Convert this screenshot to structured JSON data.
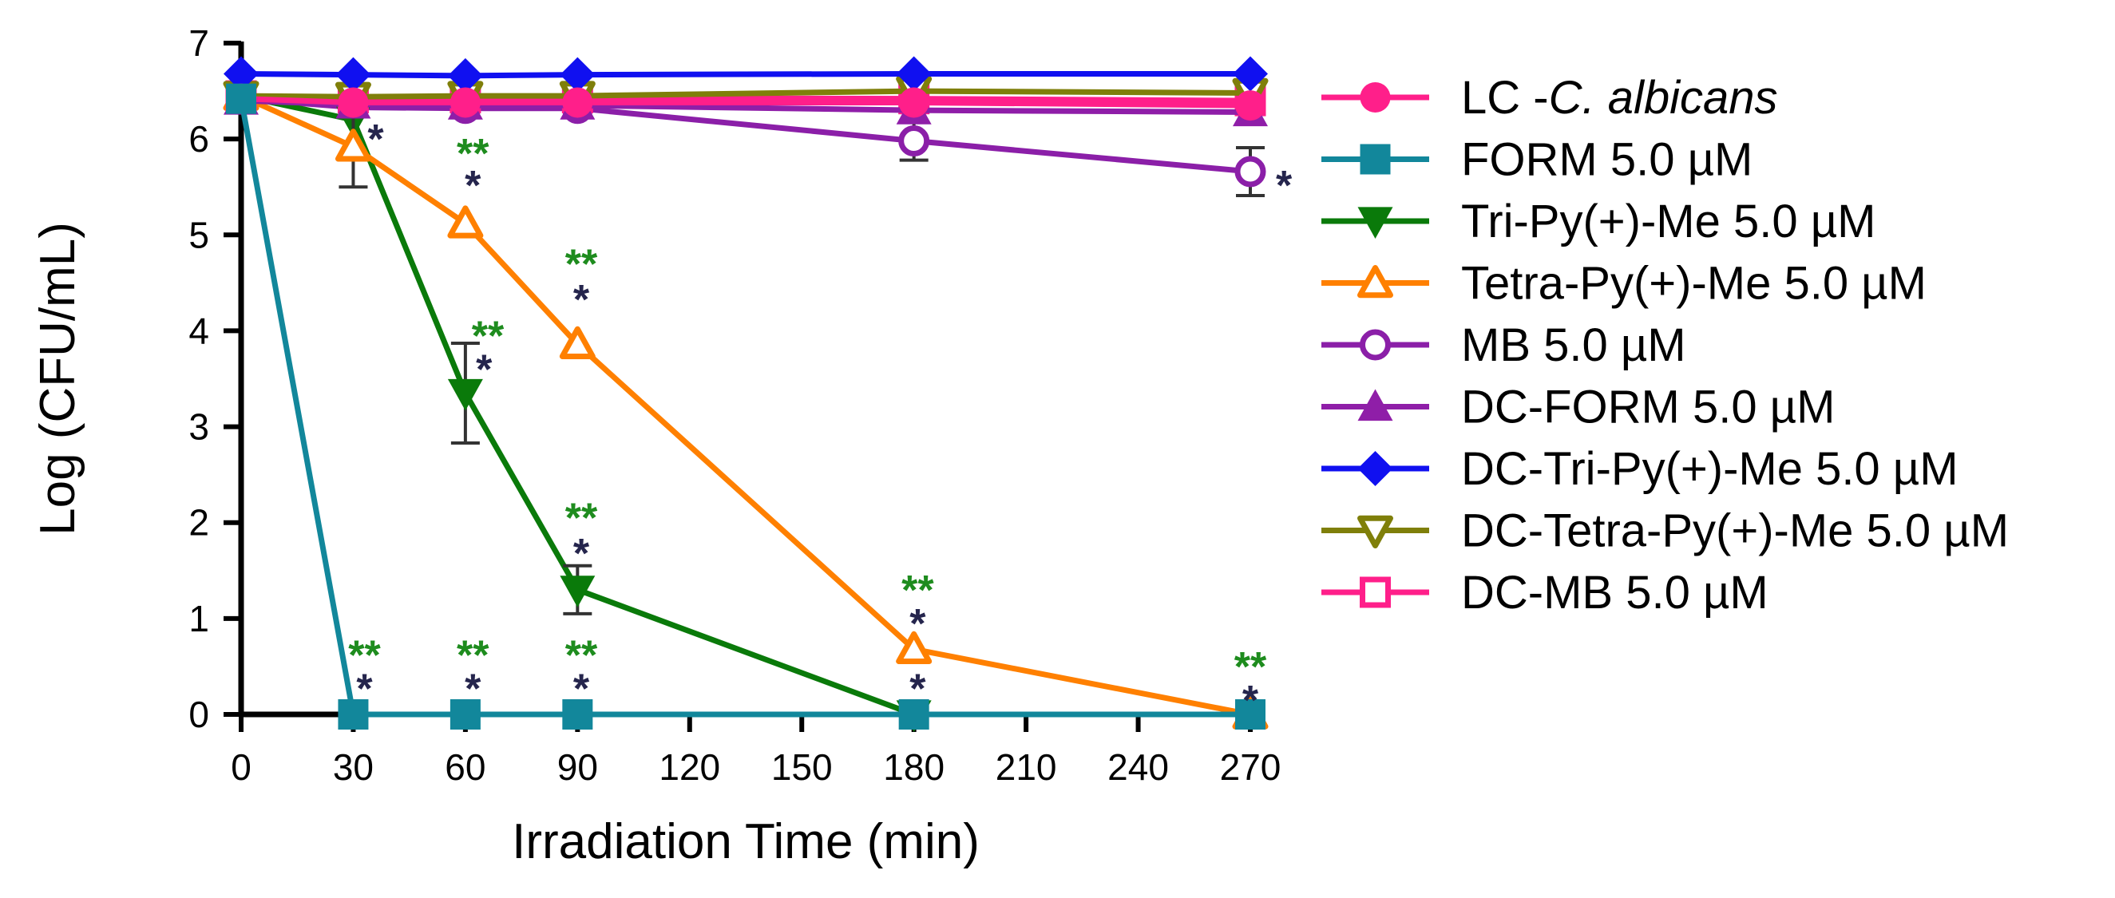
{
  "chart_data": {
    "type": "line",
    "title": "",
    "xlabel": "Irradiation Time (min)",
    "ylabel": "Log (CFU/mL)",
    "xlim": [
      0,
      270
    ],
    "ylim": [
      0,
      7
    ],
    "xticks": [
      0,
      30,
      60,
      90,
      120,
      150,
      180,
      210,
      240,
      270
    ],
    "yticks": [
      0,
      1,
      2,
      3,
      4,
      5,
      6,
      7
    ],
    "grid": false,
    "legend_position": "right",
    "series": [
      {
        "name": "LC -C. albicans",
        "name_prefix": "LC -",
        "name_italic": "C. albicans",
        "name_suffix": "",
        "color": "#ff1f8a",
        "marker": "circle-filled",
        "x": [
          0,
          30,
          60,
          90,
          180,
          270
        ],
        "y": [
          6.42,
          6.38,
          6.38,
          6.38,
          6.38,
          6.35
        ]
      },
      {
        "name": "FORM 5.0 µM",
        "color": "#12879b",
        "marker": "square-filled",
        "x": [
          0,
          30,
          60,
          90,
          180,
          270
        ],
        "y": [
          6.42,
          0,
          0,
          0,
          0,
          0
        ]
      },
      {
        "name": "Tri-Py(+)-Me 5.0 µM",
        "color": "#0a7a0a",
        "marker": "triangle-down-filled",
        "x": [
          0,
          30,
          60,
          90,
          180
        ],
        "y": [
          6.45,
          6.2,
          3.35,
          1.3,
          0
        ],
        "err": [
          0,
          0,
          0.52,
          0.25,
          0
        ]
      },
      {
        "name": "Tetra-Py(+)-Me 5.0 µM",
        "color": "#ff8000",
        "marker": "triangle-up-open",
        "x": [
          0,
          30,
          60,
          90,
          180,
          270
        ],
        "y": [
          6.45,
          5.92,
          5.12,
          3.86,
          0.68,
          0
        ],
        "err": [
          0,
          0.42,
          0,
          0,
          0,
          0
        ]
      },
      {
        "name": "MB 5.0 µM",
        "color": "#8b1fa8",
        "marker": "circle-open",
        "x": [
          0,
          30,
          60,
          90,
          180,
          270
        ],
        "y": [
          6.42,
          6.33,
          6.32,
          6.32,
          5.98,
          5.66
        ],
        "err": [
          0,
          0,
          0,
          0,
          0.2,
          0.25
        ]
      },
      {
        "name": "DC-FORM 5.0 µM",
        "color": "#8f1ea8",
        "marker": "triangle-up-filled",
        "x": [
          0,
          30,
          60,
          90,
          180,
          270
        ],
        "y": [
          6.4,
          6.36,
          6.35,
          6.35,
          6.3,
          6.28
        ]
      },
      {
        "name": "DC-Tri-Py(+)-Me 5.0 µM",
        "color": "#1010f0",
        "marker": "diamond-filled",
        "x": [
          0,
          30,
          60,
          90,
          180,
          270
        ],
        "y": [
          6.68,
          6.67,
          6.66,
          6.67,
          6.68,
          6.68
        ]
      },
      {
        "name": "DC-Tetra-Py(+)-Me 5.0 µM",
        "color": "#7f7f0a",
        "marker": "triangle-down-open",
        "x": [
          0,
          30,
          60,
          90,
          180,
          270
        ],
        "y": [
          6.45,
          6.44,
          6.45,
          6.45,
          6.5,
          6.48
        ]
      },
      {
        "name": "DC-MB 5.0 µM",
        "color": "#ff1f8a",
        "marker": "square-open",
        "x": [
          0,
          30,
          60,
          90,
          180,
          270
        ],
        "y": [
          6.45,
          6.43,
          6.43,
          6.43,
          6.42,
          6.4
        ]
      }
    ],
    "annotations": [
      {
        "text": "*",
        "x": 36,
        "y": 6.0,
        "color": "#25254d"
      },
      {
        "text": "**",
        "x": 62,
        "y": 5.85,
        "color": "#1e8c1e"
      },
      {
        "text": "*",
        "x": 62,
        "y": 5.52,
        "color": "#25254d"
      },
      {
        "text": "**",
        "x": 66,
        "y": 3.95,
        "color": "#1e8c1e"
      },
      {
        "text": "*",
        "x": 65,
        "y": 3.6,
        "color": "#25254d"
      },
      {
        "text": "**",
        "x": 91,
        "y": 4.7,
        "color": "#1e8c1e"
      },
      {
        "text": "*",
        "x": 91,
        "y": 4.33,
        "color": "#25254d"
      },
      {
        "text": "**",
        "x": 91,
        "y": 2.05,
        "color": "#1e8c1e"
      },
      {
        "text": "*",
        "x": 91,
        "y": 1.68,
        "color": "#25254d"
      },
      {
        "text": "**",
        "x": 181,
        "y": 1.3,
        "color": "#1e8c1e"
      },
      {
        "text": "*",
        "x": 181,
        "y": 0.95,
        "color": "#25254d"
      },
      {
        "text": "**",
        "x": 33,
        "y": 0.62,
        "color": "#1e8c1e"
      },
      {
        "text": "*",
        "x": 33,
        "y": 0.27,
        "color": "#25254d"
      },
      {
        "text": "**",
        "x": 62,
        "y": 0.62,
        "color": "#1e8c1e"
      },
      {
        "text": "*",
        "x": 62,
        "y": 0.27,
        "color": "#25254d"
      },
      {
        "text": "**",
        "x": 91,
        "y": 0.62,
        "color": "#1e8c1e"
      },
      {
        "text": "*",
        "x": 91,
        "y": 0.27,
        "color": "#25254d"
      },
      {
        "text": "*",
        "x": 181,
        "y": 0.27,
        "color": "#25254d"
      },
      {
        "text": "**",
        "x": 270,
        "y": 0.5,
        "color": "#1e8c1e"
      },
      {
        "text": "*",
        "x": 270,
        "y": 0.15,
        "color": "#25254d"
      },
      {
        "text": "*",
        "x": 279,
        "y": 5.52,
        "color": "#25254d"
      }
    ]
  }
}
